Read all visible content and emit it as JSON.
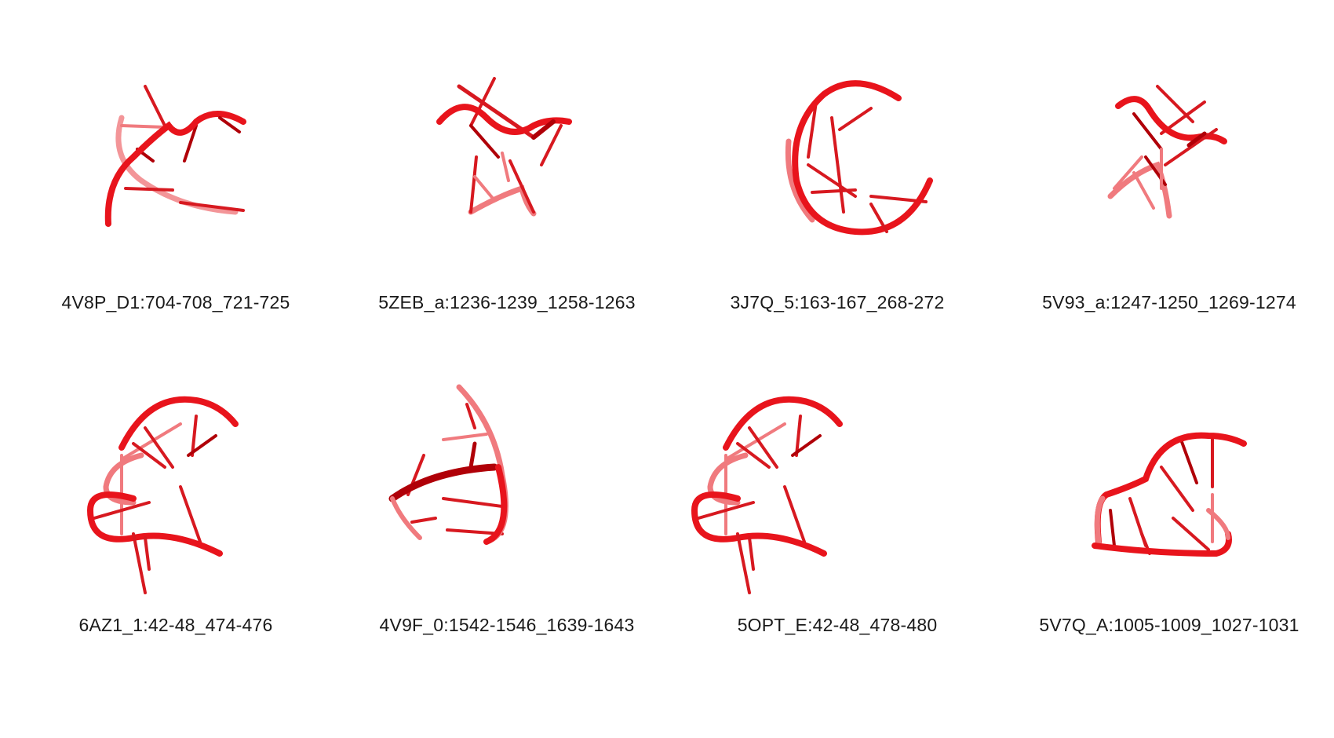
{
  "panels": [
    {
      "label": "4V8P_D1:704-708_721-725"
    },
    {
      "label": "5ZEB_a:1236-1239_1258-1263"
    },
    {
      "label": "3J7Q_5:163-167_268-272"
    },
    {
      "label": "5V93_a:1247-1250_1269-1274"
    },
    {
      "label": "6AZ1_1:42-48_474-476"
    },
    {
      "label": "4V9F_0:1542-1546_1639-1643"
    },
    {
      "label": "5OPT_E:42-48_478-480"
    },
    {
      "label": "5V7Q_A:1005-1009_1027-1031"
    }
  ],
  "colors": {
    "strand": "#e8141c",
    "strand_dark": "#b00008",
    "strand_light": "#f07a7e",
    "rung": "#d71920"
  }
}
